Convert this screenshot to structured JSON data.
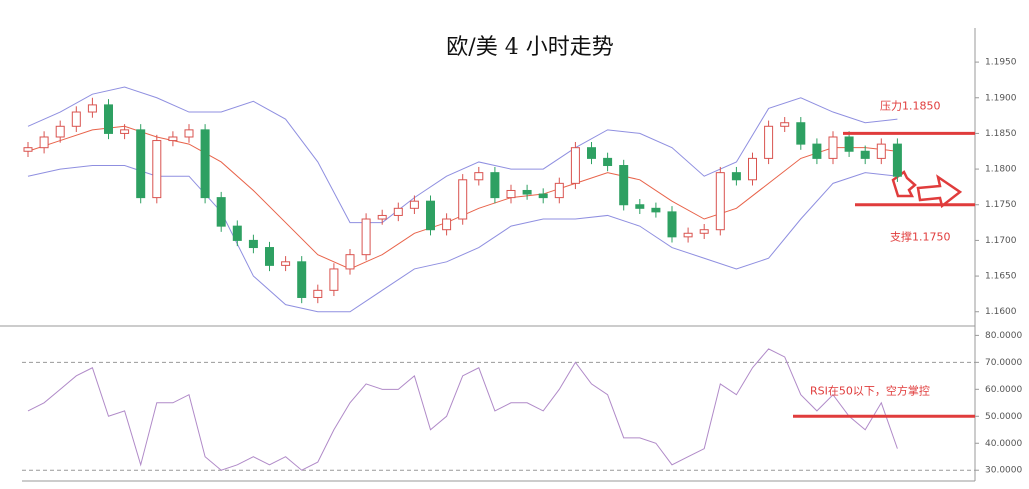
{
  "chart_data": {
    "type": "candlestick",
    "title": "欧/美 4 小时走势",
    "up_color": "#d9534f",
    "down_color": "#2ea062",
    "open": [
      1.1825,
      1.183,
      1.1845,
      1.186,
      1.188,
      1.189,
      1.185,
      1.1855,
      1.176,
      1.184,
      1.1845,
      1.1855,
      1.176,
      1.172,
      1.17,
      1.169,
      1.1665,
      1.167,
      1.162,
      1.163,
      1.166,
      1.168,
      1.173,
      1.1735,
      1.1745,
      1.1755,
      1.1715,
      1.173,
      1.1785,
      1.1795,
      1.176,
      1.177,
      1.1765,
      1.176,
      1.178,
      1.183,
      1.1815,
      1.1805,
      1.175,
      1.1745,
      1.174,
      1.1705,
      1.171,
      1.1715,
      1.1795,
      1.1785,
      1.1815,
      1.186,
      1.1865,
      1.1835,
      1.1815,
      1.1845,
      1.1825,
      1.1815,
      1.1835
    ],
    "high": [
      1.1838,
      1.1853,
      1.1868,
      1.1888,
      1.19,
      1.1898,
      1.1863,
      1.1863,
      1.1848,
      1.1853,
      1.1863,
      1.1863,
      1.1768,
      1.1728,
      1.1708,
      1.1698,
      1.1678,
      1.1678,
      1.1638,
      1.1668,
      1.1688,
      1.1738,
      1.1743,
      1.1753,
      1.1763,
      1.1763,
      1.1738,
      1.1793,
      1.1803,
      1.1803,
      1.1778,
      1.1778,
      1.1773,
      1.1788,
      1.1838,
      1.1838,
      1.1823,
      1.1813,
      1.1758,
      1.1753,
      1.1748,
      1.1718,
      1.1723,
      1.1803,
      1.1803,
      1.1823,
      1.1868,
      1.1873,
      1.1873,
      1.1843,
      1.1853,
      1.1853,
      1.1833,
      1.1843,
      1.1843
    ],
    "low": [
      1.1817,
      1.1822,
      1.1837,
      1.1852,
      1.1872,
      1.1842,
      1.1842,
      1.1752,
      1.1752,
      1.1832,
      1.1837,
      1.1752,
      1.1712,
      1.1692,
      1.1682,
      1.1657,
      1.1657,
      1.1612,
      1.1612,
      1.1622,
      1.1652,
      1.1672,
      1.1722,
      1.1727,
      1.1737,
      1.1707,
      1.1707,
      1.1722,
      1.1777,
      1.1752,
      1.1752,
      1.1757,
      1.1752,
      1.1752,
      1.1772,
      1.1807,
      1.1797,
      1.1742,
      1.1737,
      1.1732,
      1.1697,
      1.1697,
      1.1702,
      1.1707,
      1.1777,
      1.1777,
      1.1807,
      1.1852,
      1.1827,
      1.1807,
      1.1807,
      1.1817,
      1.1807,
      1.1807,
      1.1782
    ],
    "close": [
      1.183,
      1.1845,
      1.186,
      1.188,
      1.189,
      1.185,
      1.1855,
      1.176,
      1.184,
      1.1845,
      1.1855,
      1.176,
      1.172,
      1.17,
      1.169,
      1.1665,
      1.167,
      1.162,
      1.163,
      1.166,
      1.168,
      1.173,
      1.1735,
      1.1745,
      1.1755,
      1.1715,
      1.173,
      1.1785,
      1.1795,
      1.176,
      1.177,
      1.1765,
      1.176,
      1.178,
      1.183,
      1.1815,
      1.1805,
      1.175,
      1.1745,
      1.174,
      1.1705,
      1.171,
      1.1715,
      1.1795,
      1.1785,
      1.1815,
      1.186,
      1.1865,
      1.1835,
      1.1815,
      1.1845,
      1.1825,
      1.1815,
      1.1835,
      1.179
    ],
    "bands": {
      "color": "#8f8fe0",
      "mid_color": "#e8634a",
      "x": [
        0,
        2,
        4,
        6,
        8,
        10,
        12,
        14,
        16,
        18,
        20,
        22,
        24,
        26,
        28,
        30,
        32,
        34,
        36,
        38,
        40,
        42,
        44,
        46,
        48,
        50,
        52,
        54
      ],
      "upper": [
        1.186,
        1.188,
        1.1905,
        1.1915,
        1.19,
        1.188,
        1.188,
        1.1895,
        1.187,
        1.181,
        1.1725,
        1.1725,
        1.176,
        1.179,
        1.181,
        1.18,
        1.18,
        1.183,
        1.1855,
        1.185,
        1.183,
        1.179,
        1.181,
        1.1885,
        1.19,
        1.188,
        1.1865,
        1.187
      ],
      "middle": [
        1.1825,
        1.184,
        1.1855,
        1.186,
        1.1845,
        1.1835,
        1.181,
        1.177,
        1.1725,
        1.168,
        1.166,
        1.168,
        1.171,
        1.1725,
        1.1745,
        1.176,
        1.1765,
        1.178,
        1.1795,
        1.1785,
        1.1755,
        1.173,
        1.1745,
        1.178,
        1.1815,
        1.183,
        1.183,
        1.1825
      ],
      "lower": [
        1.179,
        1.18,
        1.1805,
        1.1805,
        1.179,
        1.179,
        1.174,
        1.165,
        1.161,
        1.16,
        1.16,
        1.163,
        1.166,
        1.167,
        1.169,
        1.172,
        1.173,
        1.173,
        1.1735,
        1.172,
        1.169,
        1.1675,
        1.166,
        1.1675,
        1.173,
        1.178,
        1.1795,
        1.179
      ]
    },
    "ylim": [
      1.158,
      1.1995
    ],
    "yticks": [
      {
        "value": 1.16,
        "label": "1.1600"
      },
      {
        "value": 1.165,
        "label": "1.1650"
      },
      {
        "value": 1.17,
        "label": "1.1700"
      },
      {
        "value": 1.175,
        "label": "1.1750"
      },
      {
        "value": 1.18,
        "label": "1.1800"
      },
      {
        "value": 1.185,
        "label": "1.1850"
      },
      {
        "value": 1.19,
        "label": "1.1900"
      },
      {
        "value": 1.195,
        "label": "1.1950"
      }
    ],
    "annotations": [
      {
        "label": "压力1.1850",
        "value": 1.185
      },
      {
        "label": "支撑1.1750",
        "value": 1.175
      }
    ],
    "rsi": {
      "color": "#b08ac8",
      "values": [
        52,
        55,
        60,
        65,
        68,
        50,
        52,
        32,
        55,
        55,
        58,
        35,
        30,
        32,
        35,
        32,
        35,
        30,
        33,
        45,
        55,
        62,
        60,
        60,
        65,
        45,
        50,
        65,
        68,
        52,
        55,
        55,
        52,
        60,
        70,
        62,
        58,
        42,
        42,
        40,
        32,
        35,
        38,
        62,
        58,
        68,
        75,
        72,
        58,
        52,
        58,
        50,
        45,
        55,
        38
      ],
      "ylim": [
        26,
        82
      ],
      "yticks": [
        {
          "value": 30,
          "label": "30.0000"
        },
        {
          "value": 40,
          "label": "40.0000"
        },
        {
          "value": 50,
          "label": "50.0000"
        },
        {
          "value": 60,
          "label": "60.0000"
        },
        {
          "value": 70,
          "label": "70.0000"
        },
        {
          "value": 80,
          "label": "80.0000"
        }
      ],
      "levels": [
        70,
        30
      ],
      "annotation": {
        "label": "RSI在50以下，空方掌控",
        "value": 50
      }
    }
  }
}
